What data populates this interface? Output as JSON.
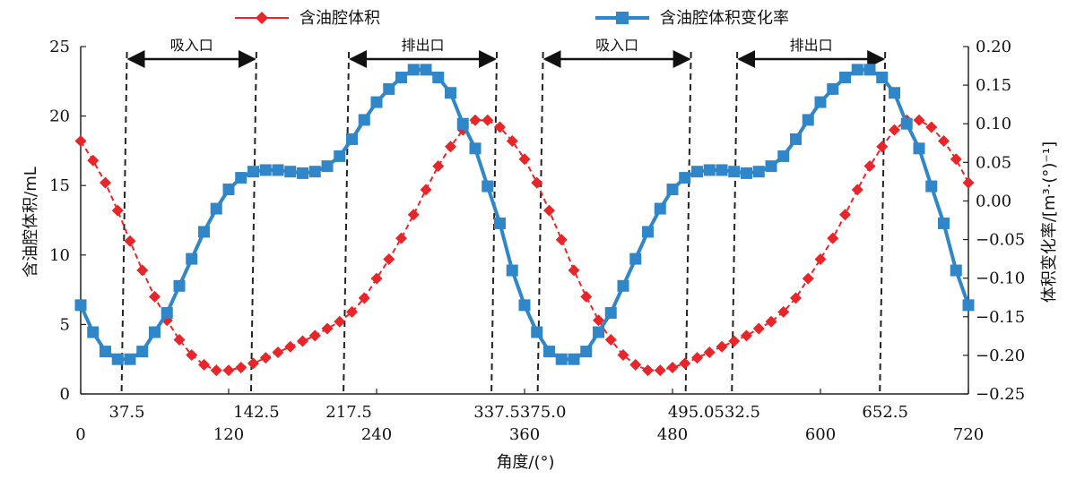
{
  "chart_data": {
    "type": "line",
    "xlabel": "角度/(°)",
    "ylabel_left": "含油腔体积/mL",
    "ylabel_right": "体积变化率/[m³·(°)⁻¹]",
    "xlim": [
      0,
      720
    ],
    "ylim_left": [
      0,
      25
    ],
    "ylim_right": [
      -0.25,
      0.2
    ],
    "x_ticks": [
      "0",
      "120",
      "240",
      "360",
      "480",
      "600",
      "720"
    ],
    "x_ticks_values": [
      0,
      120,
      240,
      360,
      480,
      600,
      720
    ],
    "x_ticks_upper": [
      "37.5",
      "142.5",
      "217.5",
      "337.5",
      "375.0",
      "495.0",
      "532.5",
      "652.5"
    ],
    "x_ticks_upper_values": [
      37.5,
      142.5,
      217.5,
      337.5,
      375.0,
      495.0,
      532.5,
      652.5
    ],
    "y_ticks_left": [
      "0",
      "5",
      "10",
      "15",
      "20",
      "25"
    ],
    "y_ticks_left_values": [
      0,
      5,
      10,
      15,
      20,
      25
    ],
    "y_ticks_right": [
      "−0.25",
      "−0.20",
      "−0.15",
      "−0.10",
      "−0.05",
      "0.00",
      "0.05",
      "0.10",
      "0.15",
      "0.20"
    ],
    "y_ticks_right_values": [
      -0.25,
      -0.2,
      -0.15,
      -0.1,
      -0.05,
      0.0,
      0.05,
      0.1,
      0.15,
      0.2
    ],
    "legend": {
      "placement": "top"
    },
    "series": [
      {
        "name": "含油腔体积",
        "axis": "left",
        "color": "#e8262a",
        "marker": "diamond",
        "x": [
          0,
          10,
          20,
          30,
          40,
          50,
          60,
          70,
          80,
          90,
          100,
          110,
          120,
          130,
          140,
          150,
          160,
          170,
          180,
          190,
          200,
          210,
          220,
          230,
          240,
          250,
          260,
          270,
          280,
          290,
          300,
          310,
          320,
          330,
          340,
          350,
          360,
          370,
          380,
          390,
          400,
          410,
          420,
          430,
          440,
          450,
          460,
          470,
          480,
          490,
          500,
          510,
          520,
          530,
          540,
          550,
          560,
          570,
          580,
          590,
          600,
          610,
          620,
          630,
          640,
          650,
          660,
          670,
          680,
          690,
          700,
          710,
          720
        ],
        "values": [
          18.2,
          16.8,
          15.2,
          13.2,
          11,
          8.9,
          7,
          5.3,
          3.9,
          2.8,
          2.1,
          1.7,
          1.7,
          1.9,
          2.2,
          2.6,
          3,
          3.4,
          3.8,
          4.2,
          4.7,
          5.2,
          5.9,
          6.9,
          8.3,
          9.7,
          11.2,
          12.9,
          14.7,
          16.4,
          17.8,
          19,
          19.7,
          19.7,
          19.2,
          18.2,
          16.9,
          15.2,
          13.2,
          11.1,
          8.9,
          7,
          5.3,
          3.9,
          2.8,
          2.1,
          1.7,
          1.7,
          1.9,
          2.2,
          2.6,
          3,
          3.4,
          3.8,
          4.2,
          4.7,
          5.2,
          5.9,
          6.9,
          8.3,
          9.7,
          11.2,
          12.9,
          14.7,
          16.4,
          17.8,
          19,
          19.7,
          19.7,
          19.2,
          18.2,
          16.9,
          15.2
        ]
      },
      {
        "name": "含油腔体积变化率",
        "axis": "right",
        "color": "#2f86c9",
        "marker": "square",
        "x": [
          0,
          10,
          20,
          30,
          40,
          50,
          60,
          70,
          80,
          90,
          100,
          110,
          120,
          130,
          140,
          150,
          160,
          170,
          180,
          190,
          200,
          210,
          220,
          230,
          240,
          250,
          260,
          270,
          280,
          290,
          300,
          310,
          320,
          330,
          340,
          350,
          360,
          370,
          380,
          390,
          400,
          410,
          420,
          430,
          440,
          450,
          460,
          470,
          480,
          490,
          500,
          510,
          520,
          530,
          540,
          550,
          560,
          570,
          580,
          590,
          600,
          610,
          620,
          630,
          640,
          650,
          660,
          670,
          680,
          690,
          700,
          710,
          720
        ],
        "values": [
          -0.135,
          -0.17,
          -0.195,
          -0.205,
          -0.205,
          -0.195,
          -0.17,
          -0.145,
          -0.11,
          -0.075,
          -0.04,
          -0.01,
          0.015,
          0.03,
          0.038,
          0.04,
          0.04,
          0.038,
          0.036,
          0.038,
          0.045,
          0.058,
          0.08,
          0.105,
          0.128,
          0.145,
          0.16,
          0.17,
          0.17,
          0.16,
          0.14,
          0.1,
          0.068,
          0.019,
          -0.029,
          -0.09,
          -0.135,
          -0.17,
          -0.195,
          -0.205,
          -0.205,
          -0.195,
          -0.17,
          -0.145,
          -0.11,
          -0.075,
          -0.04,
          -0.01,
          0.015,
          0.03,
          0.038,
          0.04,
          0.04,
          0.038,
          0.036,
          0.038,
          0.045,
          0.058,
          0.08,
          0.105,
          0.128,
          0.145,
          0.16,
          0.17,
          0.17,
          0.16,
          0.14,
          0.1,
          0.068,
          0.019,
          -0.029,
          -0.09,
          -0.135
        ]
      }
    ],
    "regions": [
      {
        "label": "吸入口",
        "x_start": 37.5,
        "x_end": 142.5
      },
      {
        "label": "排出口",
        "x_start": 217.5,
        "x_end": 337.5
      },
      {
        "label": "吸入口",
        "x_start": 375.0,
        "x_end": 495.0
      },
      {
        "label": "排出口",
        "x_start": 532.5,
        "x_end": 652.5
      }
    ],
    "grid": false
  }
}
